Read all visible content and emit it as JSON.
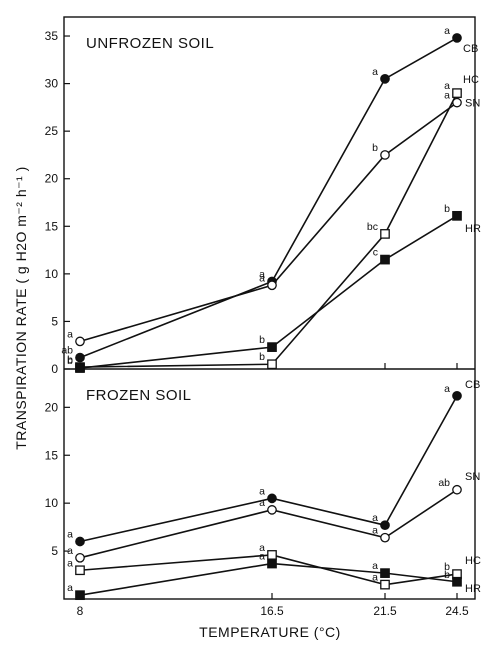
{
  "chart_data": {
    "type": "line",
    "x_label": "TEMPERATURE (°C)",
    "y_label": "TRANSPIRATION RATE ( g H2O m⁻² h⁻¹ )",
    "x_ticks": [
      "8",
      "16.5",
      "21.5",
      "24.5"
    ],
    "x": [
      8,
      16.5,
      21.5,
      24.5
    ],
    "panels": [
      {
        "title": "UNFROZEN SOIL",
        "ylim": [
          0,
          37
        ],
        "y_ticks": [
          0,
          5,
          10,
          15,
          20,
          25,
          30,
          35
        ],
        "series": [
          {
            "name": "CB",
            "marker": "filled-circle",
            "values": [
              1.2,
              9.2,
              30.5,
              34.8
            ],
            "letters": [
              "ab",
              "a",
              "a",
              "a"
            ]
          },
          {
            "name": "HC",
            "marker": "open-square",
            "values": [
              0.2,
              0.5,
              14.2,
              29.0
            ],
            "letters": [
              "b",
              "b",
              "bc",
              "a"
            ]
          },
          {
            "name": "SN",
            "marker": "open-circle",
            "values": [
              2.9,
              8.8,
              22.5,
              28.0
            ],
            "letters": [
              "a",
              "a",
              "b",
              "a"
            ]
          },
          {
            "name": "HR",
            "marker": "filled-square",
            "values": [
              0.1,
              2.3,
              11.5,
              16.1
            ],
            "letters": [
              "b",
              "b",
              "c",
              "b"
            ]
          }
        ]
      },
      {
        "title": "FROZEN SOIL",
        "ylim": [
          0,
          24
        ],
        "y_ticks": [
          5,
          10,
          15,
          20
        ],
        "series": [
          {
            "name": "CB",
            "marker": "filled-circle",
            "values": [
              6.0,
              10.5,
              7.7,
              21.2
            ],
            "letters": [
              "a",
              "a",
              "a",
              "a"
            ]
          },
          {
            "name": "SN",
            "marker": "open-circle",
            "values": [
              4.3,
              9.3,
              6.4,
              11.4
            ],
            "letters": [
              "a",
              "a",
              "a",
              "ab"
            ]
          },
          {
            "name": "HC",
            "marker": "open-square",
            "values": [
              3.0,
              4.6,
              1.5,
              2.6
            ],
            "letters": [
              "a",
              "a",
              "a",
              "b"
            ]
          },
          {
            "name": "HR",
            "marker": "filled-square",
            "values": [
              0.4,
              3.7,
              2.7,
              1.8
            ],
            "letters": [
              "a",
              "a",
              "a",
              "b"
            ]
          }
        ]
      }
    ]
  }
}
